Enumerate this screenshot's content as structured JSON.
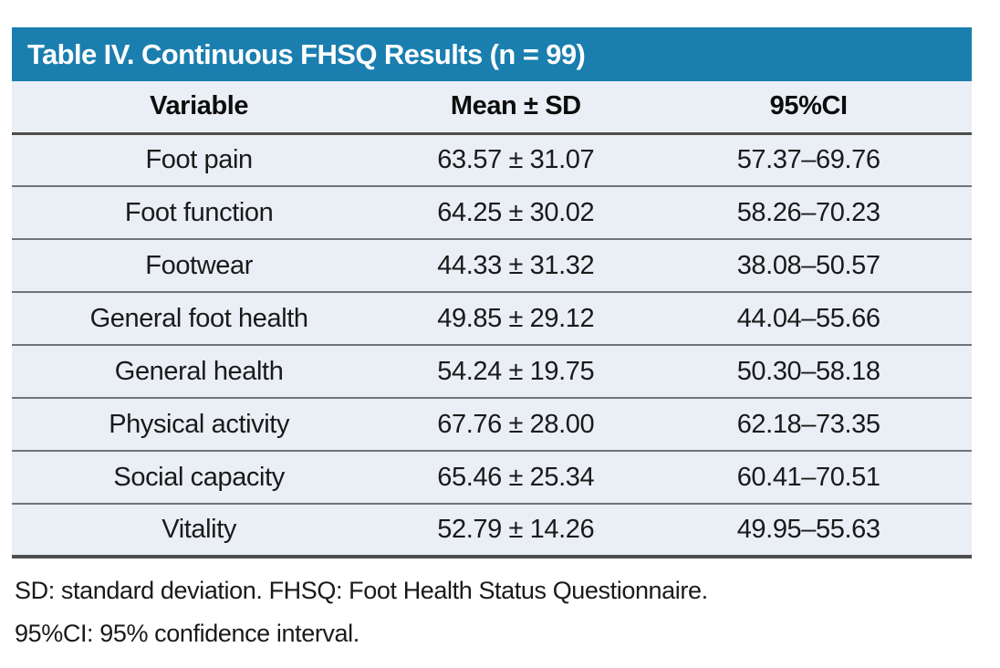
{
  "table": {
    "title": "Table IV. Continuous FHSQ Results (n = 99)",
    "columns": [
      "Variable",
      "Mean ± SD",
      "95%CI"
    ],
    "rows": [
      {
        "variable": "Foot pain",
        "mean_sd": "63.57 ± 31.07",
        "ci": "57.37–69.76"
      },
      {
        "variable": "Foot function",
        "mean_sd": "64.25 ± 30.02",
        "ci": "58.26–70.23"
      },
      {
        "variable": "Footwear",
        "mean_sd": "44.33 ± 31.32",
        "ci": "38.08–50.57"
      },
      {
        "variable": "General foot health",
        "mean_sd": "49.85 ± 29.12",
        "ci": "44.04–55.66"
      },
      {
        "variable": "General health",
        "mean_sd": "54.24 ± 19.75",
        "ci": "50.30–58.18"
      },
      {
        "variable": "Physical activity",
        "mean_sd": "67.76 ± 28.00",
        "ci": "62.18–73.35"
      },
      {
        "variable": "Social capacity",
        "mean_sd": "65.46 ± 25.34",
        "ci": "60.41–70.51"
      },
      {
        "variable": "Vitality",
        "mean_sd": "52.79 ± 14.26",
        "ci": "49.95–55.63"
      }
    ],
    "footnotes": [
      "SD: standard deviation. FHSQ: Foot Health Status Questionnaire.",
      "95%CI: 95% confidence interval."
    ]
  },
  "chart_data": {
    "type": "table",
    "title": "Table IV. Continuous FHSQ Results (n = 99)",
    "n": 99,
    "columns": [
      "Variable",
      "Mean ± SD",
      "95%CI"
    ],
    "series": [
      {
        "name": "Foot pain",
        "mean": 63.57,
        "sd": 31.07,
        "ci_low": 57.37,
        "ci_high": 69.76
      },
      {
        "name": "Foot function",
        "mean": 64.25,
        "sd": 30.02,
        "ci_low": 58.26,
        "ci_high": 70.23
      },
      {
        "name": "Footwear",
        "mean": 44.33,
        "sd": 31.32,
        "ci_low": 38.08,
        "ci_high": 50.57
      },
      {
        "name": "General foot health",
        "mean": 49.85,
        "sd": 29.12,
        "ci_low": 44.04,
        "ci_high": 55.66
      },
      {
        "name": "General health",
        "mean": 54.24,
        "sd": 19.75,
        "ci_low": 50.3,
        "ci_high": 58.18
      },
      {
        "name": "Physical activity",
        "mean": 67.76,
        "sd": 28.0,
        "ci_low": 62.18,
        "ci_high": 73.35
      },
      {
        "name": "Social capacity",
        "mean": 65.46,
        "sd": 25.34,
        "ci_low": 60.41,
        "ci_high": 70.51
      },
      {
        "name": "Vitality",
        "mean": 52.79,
        "sd": 14.26,
        "ci_low": 49.95,
        "ci_high": 55.63
      }
    ]
  },
  "colors": {
    "accent": "#1a7eaf",
    "row-bg": "#eaeef5",
    "heavy-line": "#4d4d4d",
    "light-line": "#70747a",
    "title-text": "#ffffff",
    "body-text": "#1a1a1a"
  }
}
